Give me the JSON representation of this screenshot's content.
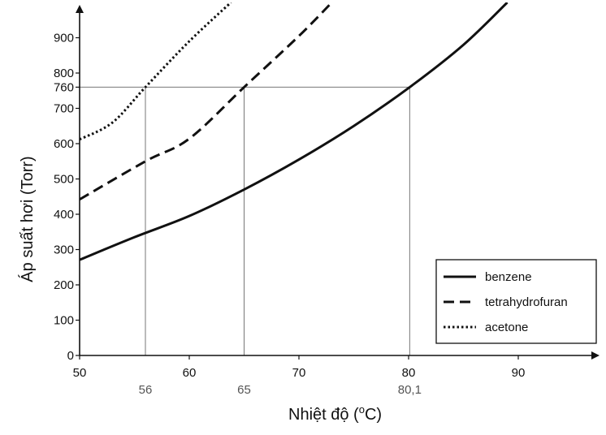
{
  "chart_data": {
    "type": "line",
    "xlabel_prefix": "Nhiệt độ (",
    "xlabel_sup": "o",
    "xlabel_suffix": "C)",
    "ylabel": "Áp suất hơi (Torr)",
    "xlim": [
      50,
      97
    ],
    "ylim": [
      0,
      1000
    ],
    "x_ticks": [
      50,
      60,
      70,
      80,
      90
    ],
    "x_tick_labels": [
      "50",
      "60",
      "70",
      "80",
      "90"
    ],
    "y_ticks": [
      0,
      100,
      200,
      300,
      400,
      500,
      600,
      700,
      800,
      900
    ],
    "y_tick_labels": [
      "0",
      "100",
      "200",
      "300",
      "400",
      "500",
      "600",
      "700",
      "800",
      "900"
    ],
    "reference_pressure": 760,
    "reference_pressure_label": "760",
    "reference_temperatures": [
      56,
      65,
      80.1
    ],
    "reference_temperature_labels": [
      "56",
      "65",
      "80,1"
    ],
    "grid": false,
    "legend_position": "bottom-right",
    "series": [
      {
        "name": "benzene",
        "style": "solid",
        "points": [
          [
            50,
            271
          ],
          [
            55,
            335
          ],
          [
            60,
            395
          ],
          [
            65,
            470
          ],
          [
            70,
            555
          ],
          [
            75,
            650
          ],
          [
            80.1,
            760
          ],
          [
            85,
            880
          ],
          [
            89,
            1000
          ]
        ]
      },
      {
        "name": "tetrahydrofuran",
        "style": "dashed",
        "points": [
          [
            50,
            442
          ],
          [
            56,
            550
          ],
          [
            60,
            614
          ],
          [
            65,
            760
          ],
          [
            70,
            905
          ],
          [
            73,
            1000
          ]
        ]
      },
      {
        "name": "acetone",
        "style": "dotted",
        "points": [
          [
            50,
            612
          ],
          [
            53,
            660
          ],
          [
            56,
            760
          ],
          [
            60,
            890
          ],
          [
            63.8,
            1000
          ]
        ]
      }
    ]
  }
}
